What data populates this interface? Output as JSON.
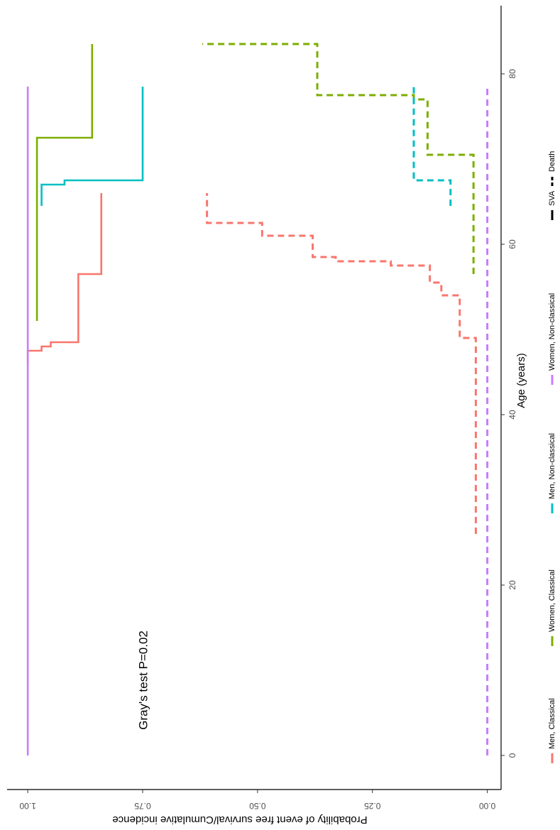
{
  "chart_data": {
    "type": "line",
    "step": true,
    "xlabel": "Age (years)",
    "ylabel": "Probability of event free survival/Cumulative incidence",
    "xlim": [
      -4,
      88
    ],
    "ylim": [
      -0.03,
      1.045
    ],
    "xticks": [
      0,
      20,
      40,
      60,
      80
    ],
    "yticks": [
      0.0,
      0.25,
      0.5,
      0.75,
      1.0
    ],
    "ytick_labels": [
      "0.00",
      "0.25",
      "0.50",
      "0.75",
      "1.00"
    ],
    "grid": false,
    "orientation": "rotated-90-clockwise",
    "legend_position": "bottom",
    "annotation": "Gray's test P=0.02",
    "groups": [
      {
        "name": "Men, Classical",
        "color": "#F8766D"
      },
      {
        "name": "Women, Classical",
        "color": "#7CAE00"
      },
      {
        "name": "Men, Non-classical",
        "color": "#00BFC4"
      },
      {
        "name": "Women, Non-classical",
        "color": "#C77CFF"
      }
    ],
    "linetypes": [
      {
        "name": "SVA",
        "dash": "solid"
      },
      {
        "name": "Death",
        "dash": "dashed"
      }
    ],
    "series": [
      {
        "group": "Men, Classical",
        "linetype": "SVA",
        "x": [
          46,
          47.5,
          48,
          48.5,
          56.5,
          66
        ],
        "y": [
          1.0,
          0.97,
          0.95,
          0.89,
          0.84,
          0.84
        ]
      },
      {
        "group": "Women, Classical",
        "linetype": "SVA",
        "x": [
          51,
          72.5,
          83.5
        ],
        "y": [
          0.98,
          0.86,
          0.86
        ]
      },
      {
        "group": "Men, Non-classical",
        "linetype": "SVA",
        "x": [
          64.5,
          67,
          67.5,
          78.5
        ],
        "y": [
          0.97,
          0.92,
          0.75,
          0.75
        ]
      },
      {
        "group": "Women, Non-classical",
        "linetype": "SVA",
        "x": [
          0,
          78.5
        ],
        "y": [
          1.0,
          1.0
        ]
      },
      {
        "group": "Men, Classical",
        "linetype": "Death",
        "x": [
          26,
          49,
          54,
          55.5,
          57.5,
          58,
          58.5,
          61,
          62.5,
          66
        ],
        "y": [
          0.025,
          0.06,
          0.1,
          0.125,
          0.21,
          0.33,
          0.38,
          0.49,
          0.61,
          0.61
        ]
      },
      {
        "group": "Women, Classical",
        "linetype": "Death",
        "x": [
          56.5,
          70.5,
          77,
          77.5,
          83.5
        ],
        "y": [
          0.03,
          0.13,
          0.16,
          0.37,
          0.62
        ]
      },
      {
        "group": "Men, Non-classical",
        "linetype": "Death",
        "x": [
          64.5,
          67.5,
          78.5
        ],
        "y": [
          0.08,
          0.16,
          0.16
        ]
      },
      {
        "group": "Women, Non-classical",
        "linetype": "Death",
        "x": [
          0,
          78.5
        ],
        "y": [
          0.0,
          0.0
        ]
      }
    ]
  }
}
